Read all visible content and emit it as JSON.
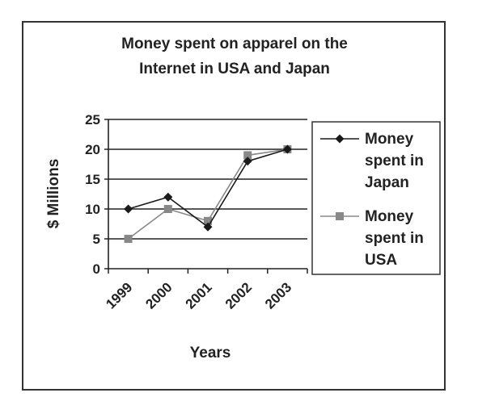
{
  "chart_data": {
    "type": "line",
    "title_lines": [
      "Money spent on apparel on the",
      "Internet in USA and Japan"
    ],
    "xlabel": "Years",
    "ylabel": "$ Millions",
    "categories": [
      "1999",
      "2000",
      "2001",
      "2002",
      "2003"
    ],
    "ylim": [
      0,
      25
    ],
    "yticks": [
      "0",
      "5",
      "10",
      "15",
      "20",
      "25"
    ],
    "grid": true,
    "legend_position": "right",
    "series": [
      {
        "name": "Money spent in Japan",
        "name_lines": [
          "Money",
          "spent in",
          "Japan"
        ],
        "marker": "diamond",
        "color": "#1a1a1a",
        "values": [
          10,
          12,
          7,
          18,
          20
        ]
      },
      {
        "name": "Money spent in USA",
        "name_lines": [
          "Money",
          "spent in",
          "USA"
        ],
        "marker": "square",
        "color": "#888888",
        "values": [
          5,
          10,
          8,
          19,
          20
        ]
      }
    ]
  }
}
